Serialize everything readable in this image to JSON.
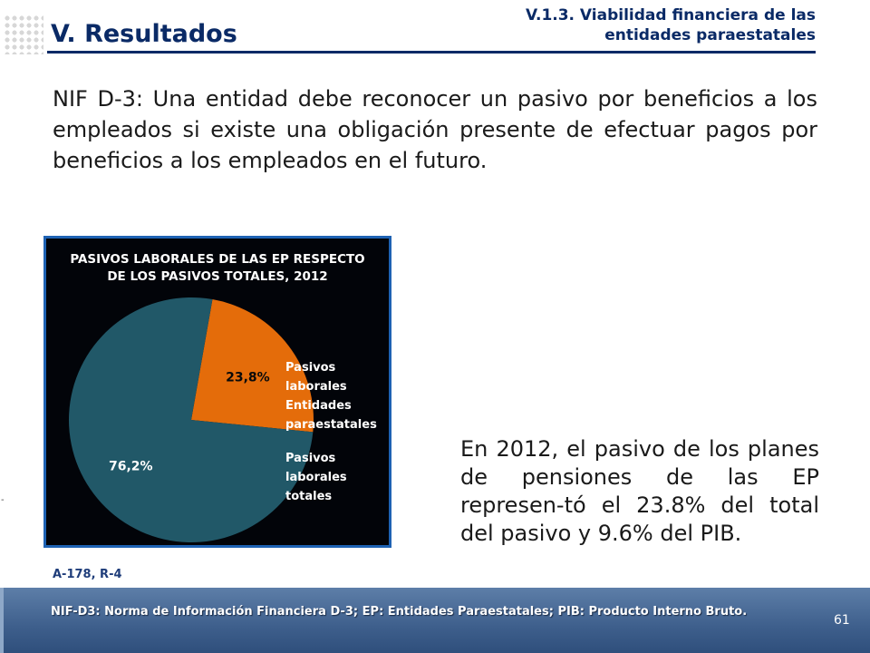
{
  "header": {
    "section_title": "V. Resultados",
    "subtitle_line1": "V.1.3. Viabilidad financiera de las",
    "subtitle_line2": "entidades paraestatales"
  },
  "intro_text": "NIF D-3: Una entidad debe reconocer un pasivo por beneficios a los empleados si existe una obligación presente de efectuar pagos por beneficios a los empleados en el futuro.",
  "chart_data": {
    "type": "pie",
    "title_line1": "PASIVOS LABORALES DE LAS EP RESPECTO",
    "title_line2": "DE LOS PASIVOS TOTALES, 2012",
    "slices": [
      {
        "legend_line1": "Pasivos",
        "legend_line2": "laborales",
        "legend_line3": "Entidades",
        "legend_line4": "paraestatales",
        "value": 23.8,
        "label": "23,8%",
        "color": "#e46c0a"
      },
      {
        "legend_line1": "Pasivos",
        "legend_line2": "laborales",
        "legend_line3": "totales",
        "value": 76.2,
        "label": "76,2%",
        "color": "#215868"
      }
    ],
    "background": "#020409",
    "border_color": "#1e62b3",
    "legend_position": "right"
  },
  "summary_text": "En 2012, el pasivo de los planes de pensiones de las EP represen-tó el 23.8% del total del pasivo y 9.6% del PIB.",
  "reference": "A-178, R-4",
  "marker": "-",
  "footer": {
    "note": "NIF-D3: Norma de Información Financiera D-3; EP: Entidades Paraestatales; PIB: Producto Interno Bruto.",
    "page_number": "61"
  },
  "colors": {
    "title_blue": "#0a2a66",
    "footer_blue": "#3e5f8c"
  }
}
